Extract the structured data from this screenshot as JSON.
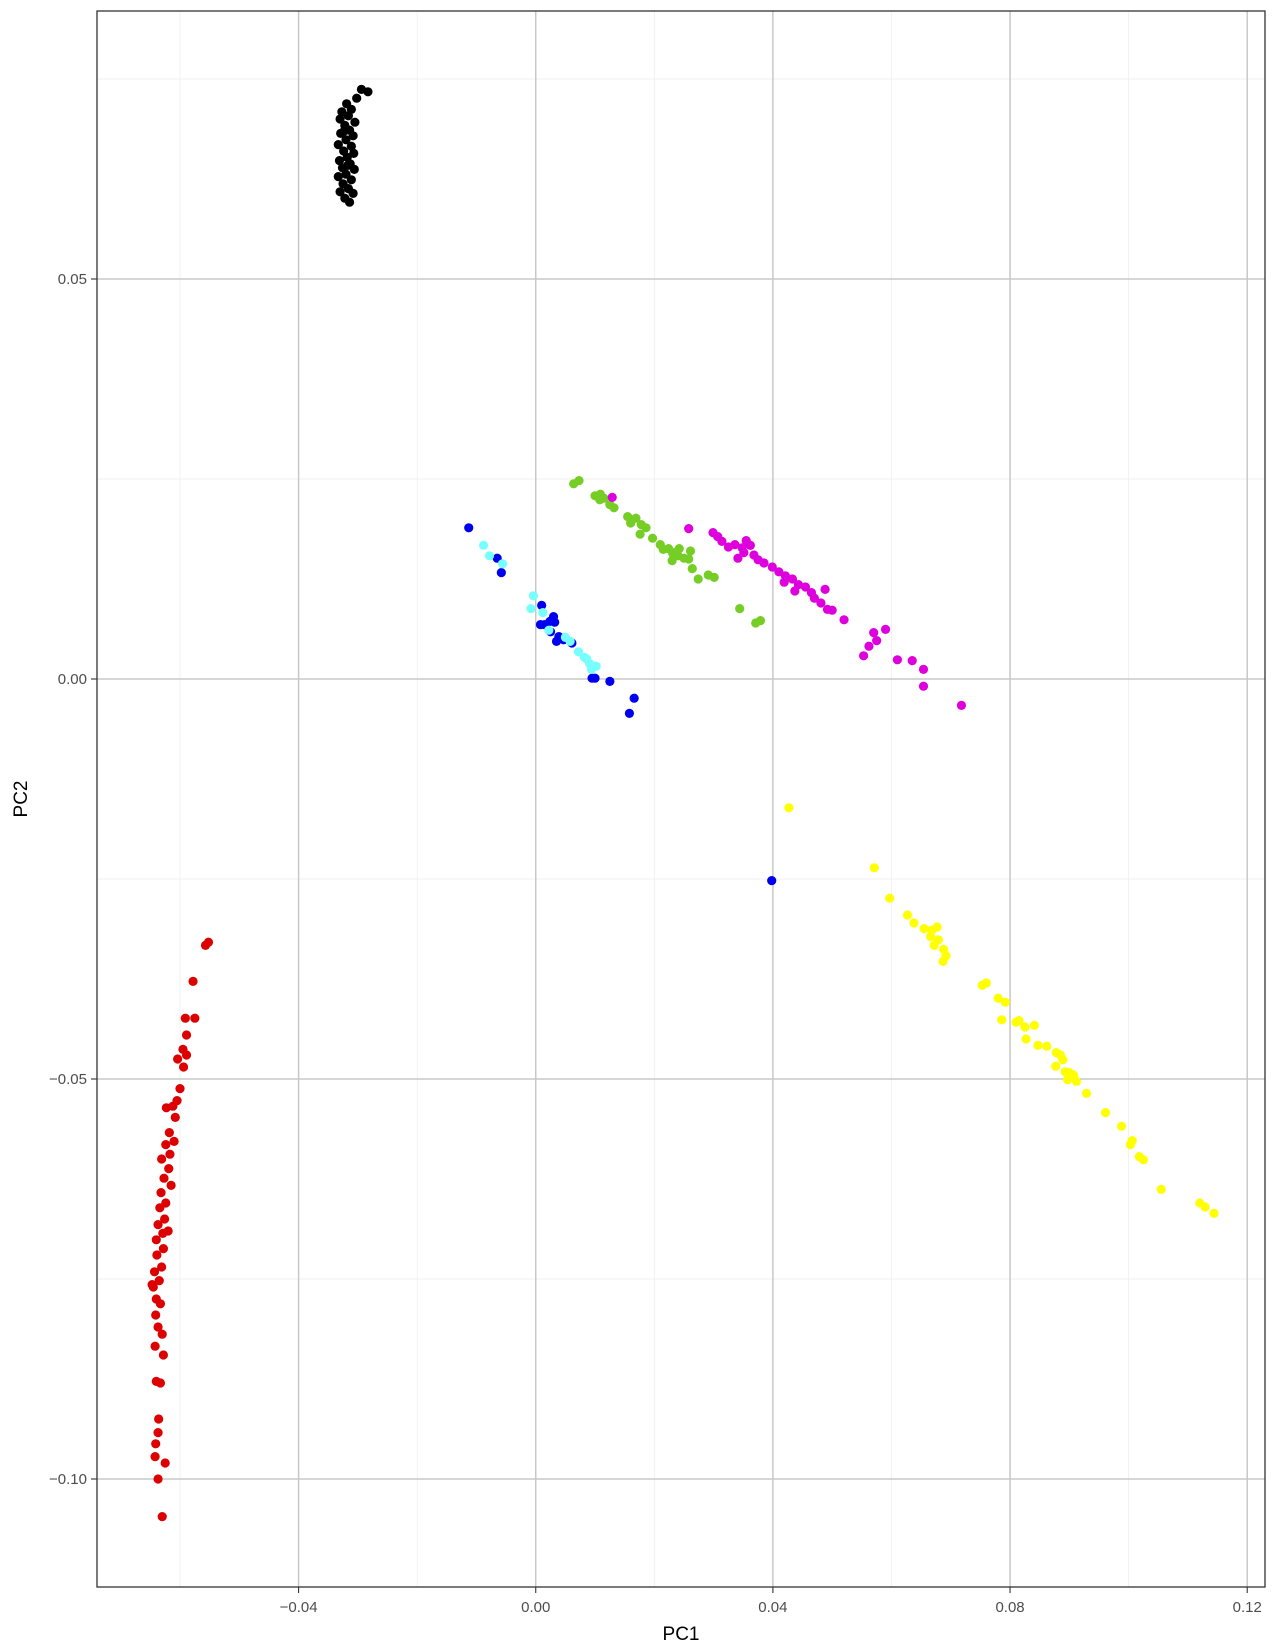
{
  "chart_data": {
    "type": "scatter",
    "title": "",
    "xlabel": "PC1",
    "ylabel": "PC2",
    "xlim": [
      -0.074,
      0.123
    ],
    "ylim": [
      -0.1135,
      0.0835
    ],
    "x_ticks": [
      -0.04,
      0.0,
      0.04,
      0.08,
      0.12
    ],
    "x_tick_labels": [
      "−0.04",
      "0.00",
      "0.04",
      "0.08",
      "0.12"
    ],
    "y_ticks": [
      0.05,
      0.0,
      -0.05,
      -0.1
    ],
    "y_tick_labels": [
      "0.05",
      "0.00",
      "−0.05",
      "−0.10"
    ],
    "grid": true,
    "legend": "none",
    "series": [
      {
        "color": "#000000",
        "points": [
          [
            -0.0294,
            0.0737
          ],
          [
            -0.0283,
            0.0734
          ],
          [
            -0.0302,
            0.0726
          ],
          [
            -0.0319,
            0.0719
          ],
          [
            -0.0327,
            0.0709
          ],
          [
            -0.0311,
            0.0712
          ],
          [
            -0.033,
            0.07
          ],
          [
            -0.0316,
            0.0704
          ],
          [
            -0.0305,
            0.0696
          ],
          [
            -0.0322,
            0.0692
          ],
          [
            -0.0314,
            0.0686
          ],
          [
            -0.0329,
            0.0682
          ],
          [
            -0.0308,
            0.0679
          ],
          [
            -0.032,
            0.0674
          ],
          [
            -0.0333,
            0.0668
          ],
          [
            -0.0311,
            0.0666
          ],
          [
            -0.0324,
            0.066
          ],
          [
            -0.0307,
            0.0657
          ],
          [
            -0.0318,
            0.0652
          ],
          [
            -0.0331,
            0.0648
          ],
          [
            -0.0313,
            0.0644
          ],
          [
            -0.0326,
            0.0639
          ],
          [
            -0.0306,
            0.0637
          ],
          [
            -0.032,
            0.0631
          ],
          [
            -0.0333,
            0.0628
          ],
          [
            -0.0311,
            0.0624
          ],
          [
            -0.0325,
            0.0619
          ],
          [
            -0.0316,
            0.0613
          ],
          [
            -0.033,
            0.0609
          ],
          [
            -0.0308,
            0.0607
          ],
          [
            -0.0322,
            0.0601
          ],
          [
            -0.0314,
            0.0596
          ],
          [
            -0.0323,
            0.0685
          ],
          [
            -0.0317,
            0.0642
          ]
        ]
      },
      {
        "color": "#DD0000",
        "points": [
          [
            -0.0552,
            -0.0329
          ],
          [
            -0.0557,
            -0.0333
          ],
          [
            -0.0578,
            -0.0378
          ],
          [
            -0.0575,
            -0.0424
          ],
          [
            -0.0591,
            -0.0424
          ],
          [
            -0.0589,
            -0.0445
          ],
          [
            -0.0595,
            -0.0463
          ],
          [
            -0.0589,
            -0.047
          ],
          [
            -0.0604,
            -0.0475
          ],
          [
            -0.0594,
            -0.0485
          ],
          [
            -0.06,
            -0.0512
          ],
          [
            -0.0605,
            -0.0527
          ],
          [
            -0.0612,
            -0.0534
          ],
          [
            -0.0623,
            -0.0536
          ],
          [
            -0.0608,
            -0.0548
          ],
          [
            -0.0618,
            -0.0567
          ],
          [
            -0.061,
            -0.0578
          ],
          [
            -0.0624,
            -0.0582
          ],
          [
            -0.0617,
            -0.0594
          ],
          [
            -0.0631,
            -0.06
          ],
          [
            -0.0619,
            -0.0612
          ],
          [
            -0.0627,
            -0.0624
          ],
          [
            -0.0615,
            -0.0633
          ],
          [
            -0.0632,
            -0.0642
          ],
          [
            -0.0624,
            -0.0655
          ],
          [
            -0.0634,
            -0.0661
          ],
          [
            -0.0626,
            -0.0675
          ],
          [
            -0.0637,
            -0.0682
          ],
          [
            -0.0629,
            -0.0693
          ],
          [
            -0.064,
            -0.0701
          ],
          [
            -0.0628,
            -0.0712
          ],
          [
            -0.0639,
            -0.072
          ],
          [
            -0.0631,
            -0.0735
          ],
          [
            -0.0643,
            -0.0741
          ],
          [
            -0.0635,
            -0.0752
          ],
          [
            -0.0645,
            -0.076
          ],
          [
            -0.064,
            -0.0775
          ],
          [
            -0.0633,
            -0.0781
          ],
          [
            -0.0641,
            -0.0795
          ],
          [
            -0.0637,
            -0.081
          ],
          [
            -0.063,
            -0.0819
          ],
          [
            -0.0642,
            -0.0834
          ],
          [
            -0.0628,
            -0.0845
          ],
          [
            -0.064,
            -0.0878
          ],
          [
            -0.0633,
            -0.088
          ],
          [
            -0.0636,
            -0.0925
          ],
          [
            -0.0637,
            -0.0942
          ],
          [
            -0.0641,
            -0.0956
          ],
          [
            -0.0625,
            -0.098
          ],
          [
            -0.0642,
            -0.0972
          ],
          [
            -0.0637,
            -0.1
          ],
          [
            -0.063,
            -0.1047
          ],
          [
            -0.0647,
            -0.0757
          ],
          [
            -0.062,
            -0.069
          ]
        ]
      },
      {
        "color": "#76CD26",
        "points": [
          [
            0.0064,
            0.0244
          ],
          [
            0.0073,
            0.0248
          ],
          [
            0.01,
            0.0229
          ],
          [
            0.0109,
            0.0231
          ],
          [
            0.0115,
            0.0226
          ],
          [
            0.0108,
            0.0224
          ],
          [
            0.0125,
            0.0218
          ],
          [
            0.0132,
            0.0214
          ],
          [
            0.0155,
            0.0203
          ],
          [
            0.0162,
            0.0199
          ],
          [
            0.0169,
            0.0201
          ],
          [
            0.016,
            0.0195
          ],
          [
            0.0178,
            0.0193
          ],
          [
            0.0186,
            0.0189
          ],
          [
            0.0176,
            0.0181
          ],
          [
            0.0197,
            0.0176
          ],
          [
            0.021,
            0.0168
          ],
          [
            0.0215,
            0.0162
          ],
          [
            0.0224,
            0.0163
          ],
          [
            0.0231,
            0.0157
          ],
          [
            0.0242,
            0.0163
          ],
          [
            0.024,
            0.0154
          ],
          [
            0.025,
            0.0151
          ],
          [
            0.0261,
            0.016
          ],
          [
            0.0258,
            0.015
          ],
          [
            0.0264,
            0.0138
          ],
          [
            0.023,
            0.0148
          ],
          [
            0.0291,
            0.013
          ],
          [
            0.0301,
            0.0127
          ],
          [
            0.0274,
            0.0125
          ],
          [
            0.0344,
            0.0088
          ],
          [
            0.0371,
            0.007
          ],
          [
            0.0379,
            0.0073
          ],
          [
            0.0234,
            0.0158
          ]
        ]
      },
      {
        "color": "#DD00DD",
        "points": [
          [
            0.0129,
            0.0227
          ],
          [
            0.0258,
            0.0188
          ],
          [
            0.0299,
            0.0183
          ],
          [
            0.0307,
            0.0178
          ],
          [
            0.0314,
            0.0172
          ],
          [
            0.0325,
            0.0165
          ],
          [
            0.0336,
            0.0168
          ],
          [
            0.0348,
            0.0164
          ],
          [
            0.0355,
            0.0173
          ],
          [
            0.0362,
            0.0167
          ],
          [
            0.0351,
            0.0158
          ],
          [
            0.0368,
            0.0155
          ],
          [
            0.0341,
            0.0151
          ],
          [
            0.0375,
            0.0149
          ],
          [
            0.0385,
            0.0145
          ],
          [
            0.0399,
            0.014
          ],
          [
            0.041,
            0.0134
          ],
          [
            0.0421,
            0.0129
          ],
          [
            0.0433,
            0.0125
          ],
          [
            0.0419,
            0.0121
          ],
          [
            0.0443,
            0.0118
          ],
          [
            0.0455,
            0.0115
          ],
          [
            0.0437,
            0.011
          ],
          [
            0.0465,
            0.0108
          ],
          [
            0.047,
            0.0101
          ],
          [
            0.0488,
            0.0112
          ],
          [
            0.0481,
            0.0095
          ],
          [
            0.0492,
            0.0087
          ],
          [
            0.05,
            0.0086
          ],
          [
            0.052,
            0.0074
          ],
          [
            0.057,
            0.0058
          ],
          [
            0.059,
            0.0062
          ],
          [
            0.0553,
            0.0029
          ],
          [
            0.0562,
            0.0041
          ],
          [
            0.0575,
            0.0048
          ],
          [
            0.061,
            0.0024
          ],
          [
            0.0635,
            0.0023
          ],
          [
            0.0654,
            0.0012
          ],
          [
            0.0654,
            -0.0009
          ],
          [
            0.0718,
            -0.0033
          ]
        ]
      },
      {
        "color": "#0000EE",
        "points": [
          [
            -0.0113,
            0.0189
          ],
          [
            -0.0065,
            0.0151
          ],
          [
            -0.0058,
            0.0133
          ],
          [
            0.001,
            0.0092
          ],
          [
            0.003,
            0.0078
          ],
          [
            0.0032,
            0.0071
          ],
          [
            0.0024,
            0.0072
          ],
          [
            0.0015,
            0.0068
          ],
          [
            0.0008,
            0.0068
          ],
          [
            0.0025,
            0.0059
          ],
          [
            0.0039,
            0.0053
          ],
          [
            0.0047,
            0.0049
          ],
          [
            0.0035,
            0.0047
          ],
          [
            0.0061,
            0.0045
          ],
          [
            0.01,
            0.0001
          ],
          [
            0.0095,
            0.0001
          ],
          [
            0.0125,
            -0.0003
          ],
          [
            0.0166,
            -0.0024
          ],
          [
            0.0158,
            -0.0043
          ],
          [
            0.0398,
            -0.0252
          ]
        ]
      },
      {
        "color": "#77FFFF",
        "points": [
          [
            -0.0088,
            0.0167
          ],
          [
            -0.0078,
            0.0154
          ],
          [
            -0.0056,
            0.0144
          ],
          [
            -0.0004,
            0.0104
          ],
          [
            -0.0008,
            0.0088
          ],
          [
            0.0012,
            0.0083
          ],
          [
            0.0022,
            0.0061
          ],
          [
            0.005,
            0.0052
          ],
          [
            0.0058,
            0.0047
          ],
          [
            0.0072,
            0.0034
          ],
          [
            0.0082,
            0.0027
          ],
          [
            0.0091,
            0.0019
          ],
          [
            0.0094,
            0.0012
          ],
          [
            0.0102,
            0.0016
          ],
          [
            0.0086,
            0.0025
          ]
        ]
      },
      {
        "color": "#FFFF00",
        "points": [
          [
            0.0427,
            -0.0161
          ],
          [
            0.0571,
            -0.0236
          ],
          [
            0.0597,
            -0.0274
          ],
          [
            0.0627,
            -0.0295
          ],
          [
            0.0638,
            -0.0305
          ],
          [
            0.0655,
            -0.0312
          ],
          [
            0.0668,
            -0.0314
          ],
          [
            0.0677,
            -0.031
          ],
          [
            0.0666,
            -0.0322
          ],
          [
            0.0679,
            -0.0326
          ],
          [
            0.0672,
            -0.0333
          ],
          [
            0.0688,
            -0.0338
          ],
          [
            0.0692,
            -0.0346
          ],
          [
            0.0687,
            -0.0353
          ],
          [
            0.0753,
            -0.0383
          ],
          [
            0.076,
            -0.038
          ],
          [
            0.078,
            -0.0399
          ],
          [
            0.0792,
            -0.0404
          ],
          [
            0.081,
            -0.0429
          ],
          [
            0.0815,
            -0.0427
          ],
          [
            0.0786,
            -0.0426
          ],
          [
            0.0825,
            -0.0435
          ],
          [
            0.0841,
            -0.0433
          ],
          [
            0.0827,
            -0.045
          ],
          [
            0.0847,
            -0.0458
          ],
          [
            0.0862,
            -0.0459
          ],
          [
            0.0878,
            -0.0467
          ],
          [
            0.0885,
            -0.047
          ],
          [
            0.0889,
            -0.0476
          ],
          [
            0.0877,
            -0.0484
          ],
          [
            0.0893,
            -0.0491
          ],
          [
            0.09,
            -0.0492
          ],
          [
            0.0907,
            -0.0495
          ],
          [
            0.0912,
            -0.0503
          ],
          [
            0.0897,
            -0.0501
          ],
          [
            0.0929,
            -0.0518
          ],
          [
            0.0961,
            -0.0542
          ],
          [
            0.0988,
            -0.0559
          ],
          [
            0.1003,
            -0.0582
          ],
          [
            0.1018,
            -0.0597
          ],
          [
            0.1025,
            -0.0601
          ],
          [
            0.1006,
            -0.0577
          ],
          [
            0.1055,
            -0.0638
          ],
          [
            0.112,
            -0.0655
          ],
          [
            0.1129,
            -0.066
          ],
          [
            0.1144,
            -0.0668
          ]
        ]
      }
    ]
  }
}
